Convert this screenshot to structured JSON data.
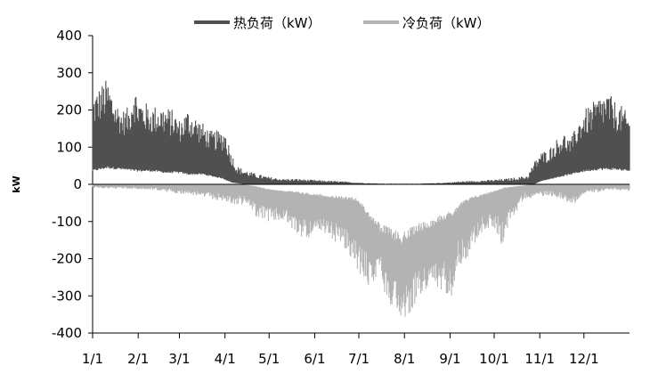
{
  "chart_data": {
    "type": "area",
    "title": "",
    "xlabel": "",
    "ylabel": "kW",
    "ylim": [
      -400,
      400
    ],
    "yticks": [
      400,
      300,
      200,
      100,
      0,
      -100,
      -200,
      -300,
      -400
    ],
    "x_range_days": [
      0,
      365
    ],
    "xticks": [
      {
        "label": "1/1",
        "day": 0
      },
      {
        "label": "2/1",
        "day": 31
      },
      {
        "label": "3/1",
        "day": 59
      },
      {
        "label": "4/1",
        "day": 90
      },
      {
        "label": "5/1",
        "day": 120
      },
      {
        "label": "6/1",
        "day": 151
      },
      {
        "label": "7/1",
        "day": 181
      },
      {
        "label": "8/1",
        "day": 212
      },
      {
        "label": "9/1",
        "day": 243
      },
      {
        "label": "10/1",
        "day": 273
      },
      {
        "label": "11/1",
        "day": 304
      },
      {
        "label": "12/1",
        "day": 334
      }
    ],
    "legend_position": "top",
    "series": [
      {
        "name": "热负荷（kW）",
        "color": "#505050",
        "upper": [
          [
            0,
            240
          ],
          [
            6,
            270
          ],
          [
            10,
            285
          ],
          [
            15,
            230
          ],
          [
            20,
            200
          ],
          [
            25,
            210
          ],
          [
            28,
            275
          ],
          [
            31,
            235
          ],
          [
            40,
            210
          ],
          [
            45,
            215
          ],
          [
            50,
            210
          ],
          [
            55,
            200
          ],
          [
            59,
            175
          ],
          [
            65,
            205
          ],
          [
            70,
            185
          ],
          [
            75,
            165
          ],
          [
            80,
            145
          ],
          [
            85,
            145
          ],
          [
            90,
            150
          ],
          [
            94,
            90
          ],
          [
            98,
            50
          ],
          [
            103,
            40
          ],
          [
            110,
            30
          ],
          [
            120,
            20
          ],
          [
            130,
            15
          ],
          [
            140,
            15
          ],
          [
            150,
            12
          ],
          [
            160,
            10
          ],
          [
            170,
            8
          ],
          [
            180,
            5
          ],
          [
            190,
            3
          ],
          [
            200,
            2
          ],
          [
            210,
            2
          ],
          [
            220,
            2
          ],
          [
            230,
            3
          ],
          [
            240,
            5
          ],
          [
            250,
            8
          ],
          [
            260,
            10
          ],
          [
            270,
            12
          ],
          [
            280,
            15
          ],
          [
            290,
            20
          ],
          [
            296,
            25
          ],
          [
            300,
            60
          ],
          [
            304,
            85
          ],
          [
            310,
            95
          ],
          [
            315,
            120
          ],
          [
            320,
            140
          ],
          [
            325,
            120
          ],
          [
            330,
            170
          ],
          [
            334,
            200
          ],
          [
            340,
            220
          ],
          [
            345,
            240
          ],
          [
            350,
            250
          ],
          [
            355,
            225
          ],
          [
            360,
            210
          ],
          [
            365,
            185
          ]
        ],
        "lower": [
          [
            0,
            40
          ],
          [
            10,
            50
          ],
          [
            20,
            45
          ],
          [
            30,
            40
          ],
          [
            40,
            40
          ],
          [
            50,
            35
          ],
          [
            59,
            35
          ],
          [
            65,
            30
          ],
          [
            75,
            30
          ],
          [
            80,
            25
          ],
          [
            88,
            18
          ],
          [
            95,
            5
          ],
          [
            105,
            0
          ],
          [
            300,
            0
          ],
          [
            305,
            10
          ],
          [
            315,
            20
          ],
          [
            325,
            30
          ],
          [
            335,
            40
          ],
          [
            345,
            45
          ],
          [
            355,
            45
          ],
          [
            365,
            40
          ]
        ]
      },
      {
        "name": "冷负荷（kW）",
        "color": "#b3b3b3",
        "lower": [
          [
            0,
            -10
          ],
          [
            20,
            -12
          ],
          [
            40,
            -15
          ],
          [
            59,
            -25
          ],
          [
            70,
            -30
          ],
          [
            80,
            -40
          ],
          [
            88,
            -45
          ],
          [
            95,
            -55
          ],
          [
            105,
            -55
          ],
          [
            112,
            -90
          ],
          [
            120,
            -100
          ],
          [
            130,
            -100
          ],
          [
            140,
            -140
          ],
          [
            150,
            -145
          ],
          [
            160,
            -140
          ],
          [
            170,
            -170
          ],
          [
            180,
            -235
          ],
          [
            186,
            -265
          ],
          [
            190,
            -290
          ],
          [
            195,
            -220
          ],
          [
            200,
            -320
          ],
          [
            205,
            -330
          ],
          [
            209,
            -355
          ],
          [
            212,
            -365
          ],
          [
            217,
            -340
          ],
          [
            222,
            -300
          ],
          [
            230,
            -290
          ],
          [
            238,
            -290
          ],
          [
            244,
            -300
          ],
          [
            248,
            -220
          ],
          [
            253,
            -210
          ],
          [
            260,
            -160
          ],
          [
            265,
            -130
          ],
          [
            270,
            -120
          ],
          [
            274,
            -120
          ],
          [
            278,
            -170
          ],
          [
            282,
            -120
          ],
          [
            288,
            -75
          ],
          [
            293,
            -40
          ],
          [
            300,
            -35
          ],
          [
            310,
            -30
          ],
          [
            320,
            -40
          ],
          [
            325,
            -60
          ],
          [
            335,
            -25
          ],
          [
            345,
            -20
          ],
          [
            355,
            -15
          ],
          [
            365,
            -20
          ]
        ],
        "upper": [
          [
            0,
            0
          ],
          [
            100,
            0
          ],
          [
            110,
            -5
          ],
          [
            120,
            -15
          ],
          [
            130,
            -20
          ],
          [
            140,
            -25
          ],
          [
            150,
            -30
          ],
          [
            160,
            -35
          ],
          [
            170,
            -40
          ],
          [
            180,
            -45
          ],
          [
            186,
            -80
          ],
          [
            190,
            -100
          ],
          [
            195,
            -130
          ],
          [
            200,
            -140
          ],
          [
            205,
            -150
          ],
          [
            210,
            -160
          ],
          [
            215,
            -150
          ],
          [
            220,
            -130
          ],
          [
            228,
            -120
          ],
          [
            236,
            -100
          ],
          [
            244,
            -90
          ],
          [
            250,
            -60
          ],
          [
            256,
            -45
          ],
          [
            262,
            -35
          ],
          [
            270,
            -25
          ],
          [
            280,
            -10
          ],
          [
            290,
            -5
          ],
          [
            300,
            0
          ],
          [
            365,
            0
          ]
        ]
      }
    ]
  }
}
